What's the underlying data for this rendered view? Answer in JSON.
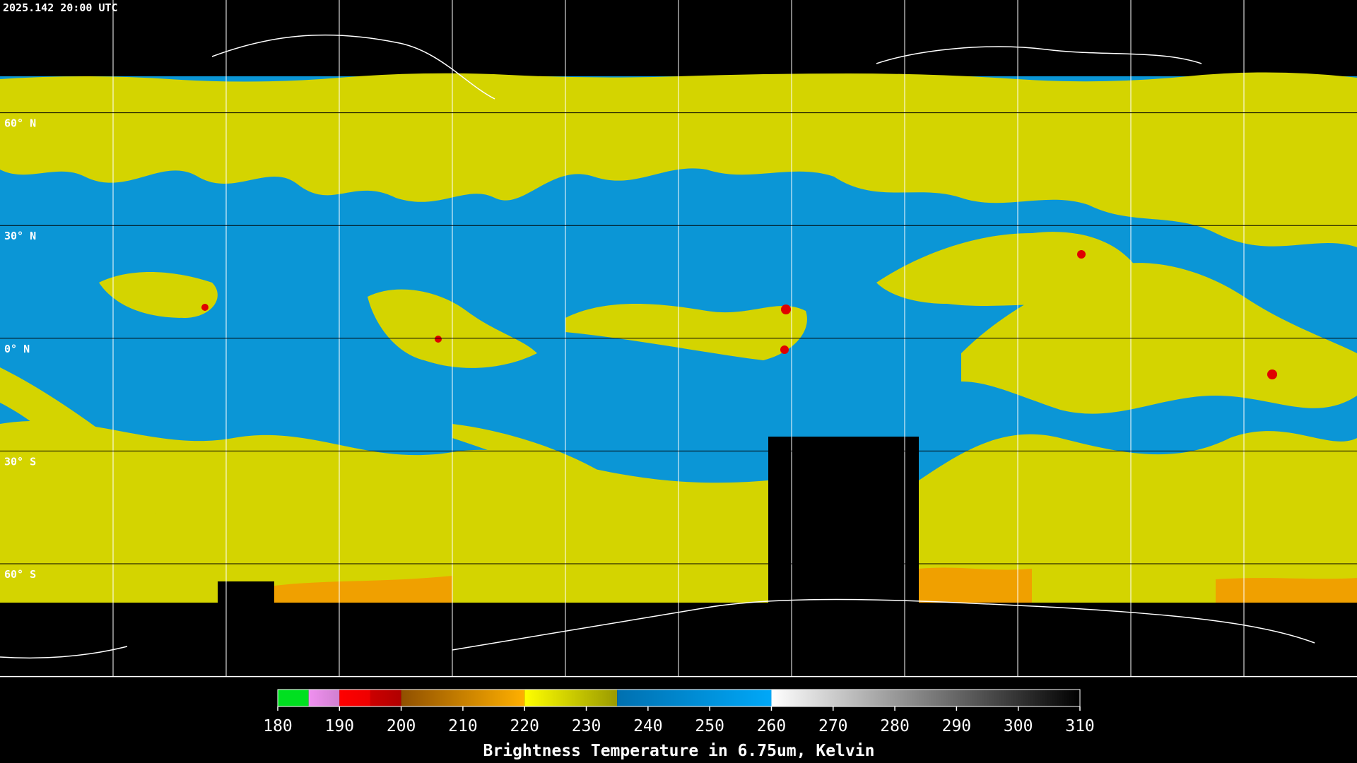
{
  "header": {
    "timestamp": "2025.142 20:00 UTC"
  },
  "latitude_labels": [
    "60° N",
    "30° N",
    "0° N",
    "30° S",
    "60° S"
  ],
  "colorbar": {
    "label": "Brightness Temperature in 6.75um, Kelvin",
    "lim": [
      180,
      310
    ],
    "ticks": [
      180,
      190,
      200,
      210,
      220,
      230,
      240,
      250,
      260,
      270,
      280,
      290,
      300,
      310
    ],
    "segments": [
      {
        "from": 180,
        "to": 185,
        "colors": [
          "#00e020",
          "#00e020"
        ]
      },
      {
        "from": 185,
        "to": 190,
        "colors": [
          "#f090f0",
          "#d080d0"
        ]
      },
      {
        "from": 190,
        "to": 195,
        "colors": [
          "#ff0000",
          "#ee0000"
        ]
      },
      {
        "from": 195,
        "to": 200,
        "colors": [
          "#cc0000",
          "#b00000"
        ]
      },
      {
        "from": 200,
        "to": 220,
        "colors": [
          "#905000",
          "#ffb000"
        ]
      },
      {
        "from": 220,
        "to": 235,
        "colors": [
          "#ffff00",
          "#9a9a00"
        ]
      },
      {
        "from": 235,
        "to": 260,
        "colors": [
          "#0070b0",
          "#00a8f8"
        ]
      },
      {
        "from": 260,
        "to": 310,
        "colors": [
          "#ffffff",
          "#000000"
        ]
      }
    ]
  }
}
